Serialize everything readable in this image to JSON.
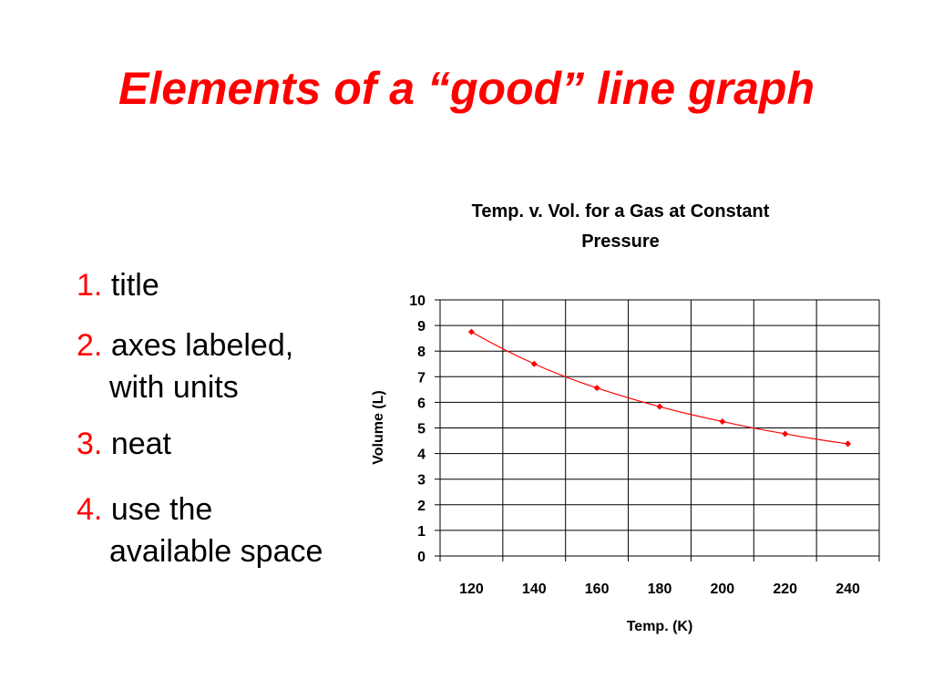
{
  "slide": {
    "title": "Elements of a “good” line graph",
    "items": [
      {
        "num": "1.",
        "text": "title",
        "cont": ""
      },
      {
        "num": "2.",
        "text": "axes labeled,",
        "cont": "with units"
      },
      {
        "num": "3.",
        "text": "neat",
        "cont": ""
      },
      {
        "num": "4.",
        "text": "use the",
        "cont": "available space"
      }
    ]
  },
  "chart_data": {
    "type": "line",
    "title_lines": [
      "Temp. v. Vol. for a Gas at Constant",
      "Pressure"
    ],
    "xlabel": "Temp. (K)",
    "ylabel": "Volume (L)",
    "categories": [
      "120",
      "140",
      "160",
      "180",
      "200",
      "220",
      "240"
    ],
    "values": [
      8.75,
      7.5,
      6.56,
      5.83,
      5.25,
      4.77,
      4.38
    ],
    "ylim": [
      0,
      10
    ],
    "yticks": [
      0,
      1,
      2,
      3,
      4,
      5,
      6,
      7,
      8,
      9,
      10
    ],
    "grid": true,
    "line_color": "#ff0000",
    "marker": "diamond"
  }
}
